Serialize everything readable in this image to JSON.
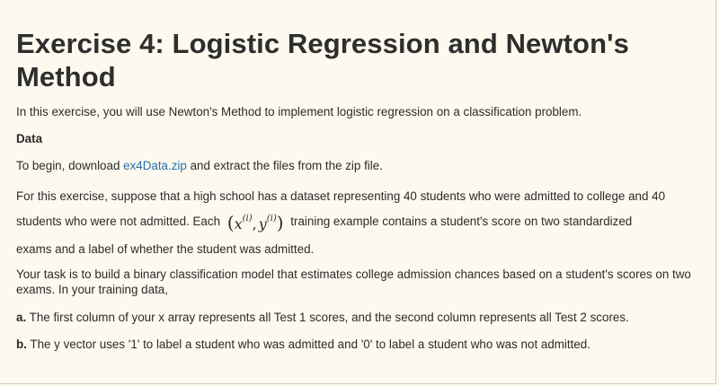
{
  "title": "Exercise 4: Logistic Regression and Newton's Method",
  "intro": "In this exercise, you will use Newton's Method to implement logistic regression on a classification problem.",
  "data_heading": "Data",
  "download": {
    "before": "To begin, download ",
    "link_text": "ex4Data.zip",
    "after": " and extract the files from the zip file."
  },
  "dataset": {
    "before": "For this exercise, suppose that a high school has a dataset representing 40 students who were admitted to college and 40 students who were not admitted. Each ",
    "formula": {
      "open": "(",
      "x": "x",
      "x_sup": "(i)",
      "comma": ",",
      "y": "y",
      "y_sup": "(i)",
      "close": ")"
    },
    "after": " training example contains a student's score on two standardized",
    "continuation": "exams and a label of whether the student was admitted."
  },
  "task": "Your task is to build a binary classification model that estimates college admission chances based on a student's scores on two exams. In your training data,",
  "items": [
    {
      "label": "a.",
      "text": " The first column of your x array represents all Test 1 scores, and the second column represents all Test 2 scores."
    },
    {
      "label": "b.",
      "text": " The y vector uses '1' to label a student who was admitted and '0' to label a student who was not admitted."
    }
  ]
}
